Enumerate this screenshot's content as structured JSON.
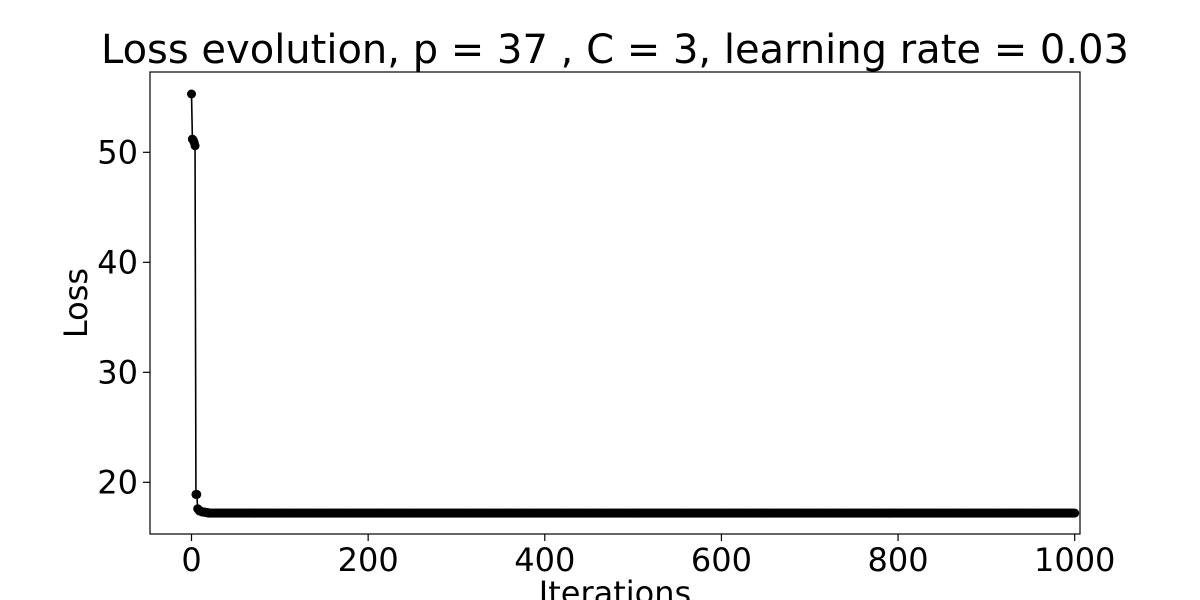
{
  "chart_data": {
    "type": "line",
    "title": "Loss evolution, p = 37 , C = 3, learning rate = 0.03",
    "xlabel": "Iterations",
    "ylabel": "Loss",
    "xlim": [
      -47,
      1006
    ],
    "ylim": [
      15.3,
      57.3
    ],
    "xticks": [
      0,
      200,
      400,
      600,
      800,
      1000
    ],
    "yticks": [
      20,
      30,
      40,
      50
    ],
    "grid": false,
    "legend": "none",
    "marker": "circle",
    "line_color": "#000000",
    "series": [
      {
        "x": [
          0,
          1,
          2,
          3,
          4,
          5,
          6,
          7,
          8,
          9,
          10,
          11,
          12,
          13,
          14,
          15,
          16,
          17,
          18,
          19,
          20,
          25,
          30,
          40,
          50,
          100,
          200,
          300,
          400,
          500,
          600,
          700,
          800,
          900,
          1000
        ],
        "y": [
          55.3,
          51.2,
          51.1,
          50.9,
          50.6,
          18.9,
          18.9,
          17.6,
          17.5,
          17.4,
          17.4,
          17.35,
          17.3,
          17.3,
          17.3,
          17.3,
          17.25,
          17.25,
          17.25,
          17.2,
          17.2,
          17.2,
          17.2,
          17.2,
          17.2,
          17.2,
          17.2,
          17.2,
          17.2,
          17.2,
          17.2,
          17.2,
          17.2,
          17.2,
          17.2
        ]
      }
    ]
  }
}
